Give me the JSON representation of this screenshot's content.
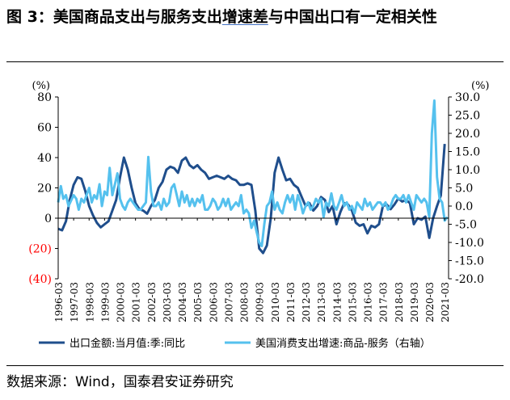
{
  "figure": {
    "title_prefix": "图 3：美国商品支出与服务支出",
    "title_highlight": "增速差",
    "title_rest": "与中国出口有一定相关性",
    "source": "数据来源：Wind，国泰君安证券研究"
  },
  "chart_data": {
    "type": "line",
    "left_unit": "(%)",
    "right_unit": "(%)",
    "left_ylim": [
      -40,
      80
    ],
    "right_ylim": [
      -20,
      30
    ],
    "left_ticks": [
      {
        "v": 80,
        "label": "80",
        "color": "#000000"
      },
      {
        "v": 60,
        "label": "60",
        "color": "#000000"
      },
      {
        "v": 40,
        "label": "40",
        "color": "#000000"
      },
      {
        "v": 20,
        "label": "20",
        "color": "#000000"
      },
      {
        "v": 0,
        "label": "0",
        "color": "#000000"
      },
      {
        "v": -20,
        "label": "(20)",
        "color": "#ff0000"
      },
      {
        "v": -40,
        "label": "(40)",
        "color": "#ff0000"
      }
    ],
    "right_ticks": [
      {
        "v": 30,
        "label": "30.0"
      },
      {
        "v": 25,
        "label": "25.0"
      },
      {
        "v": 20,
        "label": "20.0"
      },
      {
        "v": 15,
        "label": "15.0"
      },
      {
        "v": 10,
        "label": "10.0"
      },
      {
        "v": 5,
        "label": "5.0"
      },
      {
        "v": 0,
        "label": "0.0"
      },
      {
        "v": -5,
        "label": "-5.0"
      },
      {
        "v": -10,
        "label": "-10.0"
      },
      {
        "v": -15,
        "label": "-15.0"
      },
      {
        "v": -20,
        "label": "-20.0"
      }
    ],
    "x_range": [
      1996.0,
      2021.25
    ],
    "x_labels": [
      "1996-03",
      "1997-03",
      "1998-03",
      "1999-03",
      "2000-03",
      "2001-03",
      "2002-03",
      "2003-03",
      "2004-03",
      "2005-03",
      "2006-03",
      "2007-03",
      "2008-03",
      "2009-03",
      "2010-03",
      "2011-03",
      "2012-03",
      "2013-03",
      "2014-03",
      "2015-03",
      "2016-03",
      "2017-03",
      "2018-03",
      "2019-03",
      "2020-03",
      "2021-03"
    ],
    "series": [
      {
        "name": "出口金额:当月值:季:同比",
        "axis": "left",
        "color": "#1f4e8c",
        "points": [
          [
            1996.0,
            -7
          ],
          [
            1996.25,
            -8
          ],
          [
            1996.5,
            -2
          ],
          [
            1996.75,
            12
          ],
          [
            1997.0,
            22
          ],
          [
            1997.25,
            27
          ],
          [
            1997.5,
            26
          ],
          [
            1997.75,
            18
          ],
          [
            1998.0,
            8
          ],
          [
            1998.25,
            2
          ],
          [
            1998.5,
            -3
          ],
          [
            1998.75,
            -6
          ],
          [
            1999.0,
            -4
          ],
          [
            1999.25,
            -2
          ],
          [
            1999.5,
            5
          ],
          [
            1999.75,
            12
          ],
          [
            2000.0,
            27
          ],
          [
            2000.25,
            40
          ],
          [
            2000.5,
            32
          ],
          [
            2000.75,
            20
          ],
          [
            2001.0,
            10
          ],
          [
            2001.25,
            6
          ],
          [
            2001.5,
            5
          ],
          [
            2001.75,
            3
          ],
          [
            2002.0,
            8
          ],
          [
            2002.25,
            12
          ],
          [
            2002.5,
            20
          ],
          [
            2002.75,
            24
          ],
          [
            2003.0,
            32
          ],
          [
            2003.25,
            34
          ],
          [
            2003.5,
            33
          ],
          [
            2003.75,
            30
          ],
          [
            2004.0,
            38
          ],
          [
            2004.25,
            40
          ],
          [
            2004.5,
            35
          ],
          [
            2004.75,
            33
          ],
          [
            2005.0,
            35
          ],
          [
            2005.25,
            32
          ],
          [
            2005.5,
            30
          ],
          [
            2005.75,
            26
          ],
          [
            2006.0,
            27
          ],
          [
            2006.25,
            28
          ],
          [
            2006.5,
            27
          ],
          [
            2006.75,
            26
          ],
          [
            2007.0,
            28
          ],
          [
            2007.25,
            26
          ],
          [
            2007.5,
            25
          ],
          [
            2007.75,
            22
          ],
          [
            2008.0,
            22
          ],
          [
            2008.25,
            23
          ],
          [
            2008.5,
            22
          ],
          [
            2008.75,
            5
          ],
          [
            2009.0,
            -20
          ],
          [
            2009.25,
            -23
          ],
          [
            2009.5,
            -18
          ],
          [
            2009.75,
            0
          ],
          [
            2010.0,
            30
          ],
          [
            2010.25,
            40
          ],
          [
            2010.5,
            32
          ],
          [
            2010.75,
            25
          ],
          [
            2011.0,
            26
          ],
          [
            2011.25,
            22
          ],
          [
            2011.5,
            20
          ],
          [
            2011.75,
            14
          ],
          [
            2012.0,
            8
          ],
          [
            2012.25,
            10
          ],
          [
            2012.5,
            5
          ],
          [
            2012.75,
            8
          ],
          [
            2013.0,
            14
          ],
          [
            2013.25,
            12
          ],
          [
            2013.5,
            4
          ],
          [
            2013.75,
            8
          ],
          [
            2014.0,
            -4
          ],
          [
            2014.25,
            4
          ],
          [
            2014.5,
            10
          ],
          [
            2014.75,
            9
          ],
          [
            2015.0,
            5
          ],
          [
            2015.25,
            -3
          ],
          [
            2015.5,
            -5
          ],
          [
            2015.75,
            -4
          ],
          [
            2016.0,
            -10
          ],
          [
            2016.25,
            -5
          ],
          [
            2016.5,
            -6
          ],
          [
            2016.75,
            -4
          ],
          [
            2017.0,
            8
          ],
          [
            2017.25,
            9
          ],
          [
            2017.5,
            6
          ],
          [
            2017.75,
            9
          ],
          [
            2018.0,
            13
          ],
          [
            2018.25,
            11
          ],
          [
            2018.5,
            12
          ],
          [
            2018.75,
            10
          ],
          [
            2019.0,
            -4
          ],
          [
            2019.25,
            0
          ],
          [
            2019.5,
            -1
          ],
          [
            2019.75,
            1
          ],
          [
            2020.0,
            -13
          ],
          [
            2020.25,
            0
          ],
          [
            2020.5,
            8
          ],
          [
            2020.75,
            15
          ],
          [
            2021.0,
            49
          ]
        ]
      },
      {
        "name": "美国消费支出增速:商品-服务（右轴）",
        "axis": "right",
        "color": "#55c1ee",
        "points": [
          [
            1996.0,
            1
          ],
          [
            1996.17,
            5.5
          ],
          [
            1996.33,
            2
          ],
          [
            1996.5,
            3
          ],
          [
            1996.67,
            0
          ],
          [
            1996.83,
            1.5
          ],
          [
            1997.0,
            3
          ],
          [
            1997.17,
            2
          ],
          [
            1997.33,
            -1
          ],
          [
            1997.5,
            2
          ],
          [
            1997.67,
            1
          ],
          [
            1997.83,
            3
          ],
          [
            1998.0,
            5
          ],
          [
            1998.17,
            1
          ],
          [
            1998.33,
            3
          ],
          [
            1998.5,
            2
          ],
          [
            1998.67,
            6
          ],
          [
            1998.83,
            0
          ],
          [
            1999.0,
            4
          ],
          [
            1999.17,
            3
          ],
          [
            1999.33,
            10.5
          ],
          [
            1999.5,
            3
          ],
          [
            1999.67,
            6
          ],
          [
            1999.83,
            9
          ],
          [
            2000.0,
            2
          ],
          [
            2000.17,
            0
          ],
          [
            2000.33,
            -1
          ],
          [
            2000.5,
            1
          ],
          [
            2000.67,
            2
          ],
          [
            2000.83,
            1
          ],
          [
            2001.0,
            0
          ],
          [
            2001.17,
            -1
          ],
          [
            2001.33,
            -1
          ],
          [
            2001.5,
            0
          ],
          [
            2001.67,
            1
          ],
          [
            2001.83,
            13.5
          ],
          [
            2002.0,
            4
          ],
          [
            2002.17,
            0
          ],
          [
            2002.33,
            0
          ],
          [
            2002.5,
            1
          ],
          [
            2002.67,
            -1
          ],
          [
            2002.83,
            2
          ],
          [
            2003.0,
            0
          ],
          [
            2003.17,
            1
          ],
          [
            2003.33,
            5
          ],
          [
            2003.5,
            6
          ],
          [
            2003.67,
            3
          ],
          [
            2003.83,
            0
          ],
          [
            2004.0,
            4
          ],
          [
            2004.17,
            1
          ],
          [
            2004.33,
            3
          ],
          [
            2004.5,
            0
          ],
          [
            2004.67,
            2
          ],
          [
            2004.83,
            0
          ],
          [
            2005.0,
            2
          ],
          [
            2005.17,
            1
          ],
          [
            2005.33,
            3
          ],
          [
            2005.5,
            -1
          ],
          [
            2005.67,
            -1
          ],
          [
            2005.83,
            0
          ],
          [
            2006.0,
            2
          ],
          [
            2006.17,
            1
          ],
          [
            2006.33,
            -1
          ],
          [
            2006.5,
            0
          ],
          [
            2006.67,
            2
          ],
          [
            2006.83,
            0
          ],
          [
            2007.0,
            2
          ],
          [
            2007.17,
            -1
          ],
          [
            2007.33,
            0
          ],
          [
            2007.5,
            1
          ],
          [
            2007.67,
            0
          ],
          [
            2007.83,
            3
          ],
          [
            2008.0,
            -2
          ],
          [
            2008.17,
            -1
          ],
          [
            2008.33,
            -2
          ],
          [
            2008.5,
            -6
          ],
          [
            2008.67,
            -4
          ],
          [
            2008.83,
            -7
          ],
          [
            2009.0,
            -10
          ],
          [
            2009.17,
            -11
          ],
          [
            2009.33,
            -5
          ],
          [
            2009.5,
            0
          ],
          [
            2009.67,
            1
          ],
          [
            2009.83,
            4
          ],
          [
            2010.0,
            -1
          ],
          [
            2010.17,
            1
          ],
          [
            2010.33,
            -1
          ],
          [
            2010.5,
            -2
          ],
          [
            2010.67,
            1
          ],
          [
            2010.83,
            3
          ],
          [
            2011.0,
            1
          ],
          [
            2011.17,
            3
          ],
          [
            2011.33,
            -1
          ],
          [
            2011.5,
            3
          ],
          [
            2011.67,
            1
          ],
          [
            2011.83,
            -2
          ],
          [
            2012.0,
            0
          ],
          [
            2012.17,
            1
          ],
          [
            2012.33,
            -1
          ],
          [
            2012.5,
            0
          ],
          [
            2012.67,
            2
          ],
          [
            2012.83,
            1
          ],
          [
            2013.0,
            2
          ],
          [
            2013.17,
            -3
          ],
          [
            2013.33,
            1
          ],
          [
            2013.5,
            0
          ],
          [
            2013.67,
            3.5
          ],
          [
            2013.83,
            0
          ],
          [
            2014.0,
            -1
          ],
          [
            2014.17,
            1
          ],
          [
            2014.33,
            3
          ],
          [
            2014.5,
            0
          ],
          [
            2014.67,
            1
          ],
          [
            2014.83,
            -1
          ],
          [
            2015.0,
            0
          ],
          [
            2015.17,
            -2
          ],
          [
            2015.33,
            1
          ],
          [
            2015.5,
            0
          ],
          [
            2015.67,
            -1
          ],
          [
            2015.83,
            2
          ],
          [
            2016.0,
            0
          ],
          [
            2016.17,
            1
          ],
          [
            2016.33,
            -1
          ],
          [
            2016.5,
            0
          ],
          [
            2016.67,
            1
          ],
          [
            2016.83,
            1
          ],
          [
            2017.0,
            0
          ],
          [
            2017.17,
            1
          ],
          [
            2017.33,
            -1
          ],
          [
            2017.5,
            0
          ],
          [
            2017.67,
            2
          ],
          [
            2017.83,
            3
          ],
          [
            2018.0,
            2
          ],
          [
            2018.17,
            2
          ],
          [
            2018.33,
            3
          ],
          [
            2018.5,
            1
          ],
          [
            2018.67,
            3
          ],
          [
            2018.83,
            1
          ],
          [
            2019.0,
            -1
          ],
          [
            2019.17,
            3
          ],
          [
            2019.33,
            2
          ],
          [
            2019.5,
            1
          ],
          [
            2019.67,
            2
          ],
          [
            2019.83,
            1
          ],
          [
            2020.0,
            -3
          ],
          [
            2020.17,
            20
          ],
          [
            2020.33,
            29
          ],
          [
            2020.5,
            8
          ],
          [
            2020.67,
            2
          ],
          [
            2020.83,
            1
          ],
          [
            2021.0,
            -4
          ],
          [
            2021.17,
            -3
          ]
        ]
      }
    ]
  },
  "legend": {
    "items": [
      {
        "label": "出口金额:当月值:季:同比",
        "color": "#1f4e8c"
      },
      {
        "label": "美国消费支出增速:商品-服务（右轴）",
        "color": "#55c1ee"
      }
    ]
  }
}
